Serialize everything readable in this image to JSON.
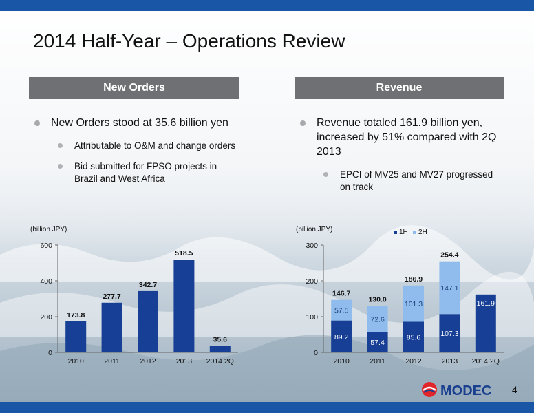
{
  "title": "2014 Half-Year – Operations Review",
  "left": {
    "header": "New Orders",
    "bullet": "New Orders stood at 35.6 billion yen",
    "subs": [
      "Attributable to O&M and change orders",
      "Bid submitted  for FPSO projects in Brazil and West Africa"
    ]
  },
  "right": {
    "header": "Revenue",
    "bullet": "Revenue totaled 161.9 billion yen, increased by 51% compared with 2Q 2013",
    "subs": [
      "EPCI of MV25 and MV27 progressed on track"
    ]
  },
  "logo_text": "MODEC",
  "page_number": "4",
  "colors": {
    "bar_dark": "#163f95",
    "bar_light": "#8fbcec",
    "header_gray": "#6e7073",
    "brand_blue": "#1a56a6",
    "logo_red": "#e0262b"
  },
  "chart_data": [
    {
      "type": "bar",
      "ylabel": "(billion JPY)",
      "categories": [
        "2010",
        "2011",
        "2012",
        "2013",
        "2014 2Q"
      ],
      "values": [
        173.8,
        277.7,
        342.7,
        518.5,
        35.6
      ],
      "value_labels": [
        "173.8",
        "277.7",
        "342.7",
        "518.5",
        "35.6"
      ],
      "ylim": [
        0,
        600
      ],
      "yticks": [
        0,
        200,
        400,
        600
      ],
      "grid": false
    },
    {
      "type": "bar",
      "stacked": true,
      "ylabel": "(billion JPY)",
      "categories": [
        "2010",
        "2011",
        "2012",
        "2013",
        "2014 2Q"
      ],
      "series": [
        {
          "name": "1H",
          "values": [
            89.2,
            57.4,
            85.6,
            107.3,
            161.9
          ]
        },
        {
          "name": "2H",
          "values": [
            57.5,
            72.6,
            101.3,
            147.1,
            null
          ]
        }
      ],
      "totals": [
        146.7,
        130.0,
        186.9,
        254.4,
        null
      ],
      "total_labels": [
        "146.7",
        "130.0",
        "186.9",
        "254.4",
        ""
      ],
      "ylim": [
        0,
        300
      ],
      "yticks": [
        0,
        100,
        200,
        300
      ],
      "legend": "top",
      "grid": false
    }
  ]
}
